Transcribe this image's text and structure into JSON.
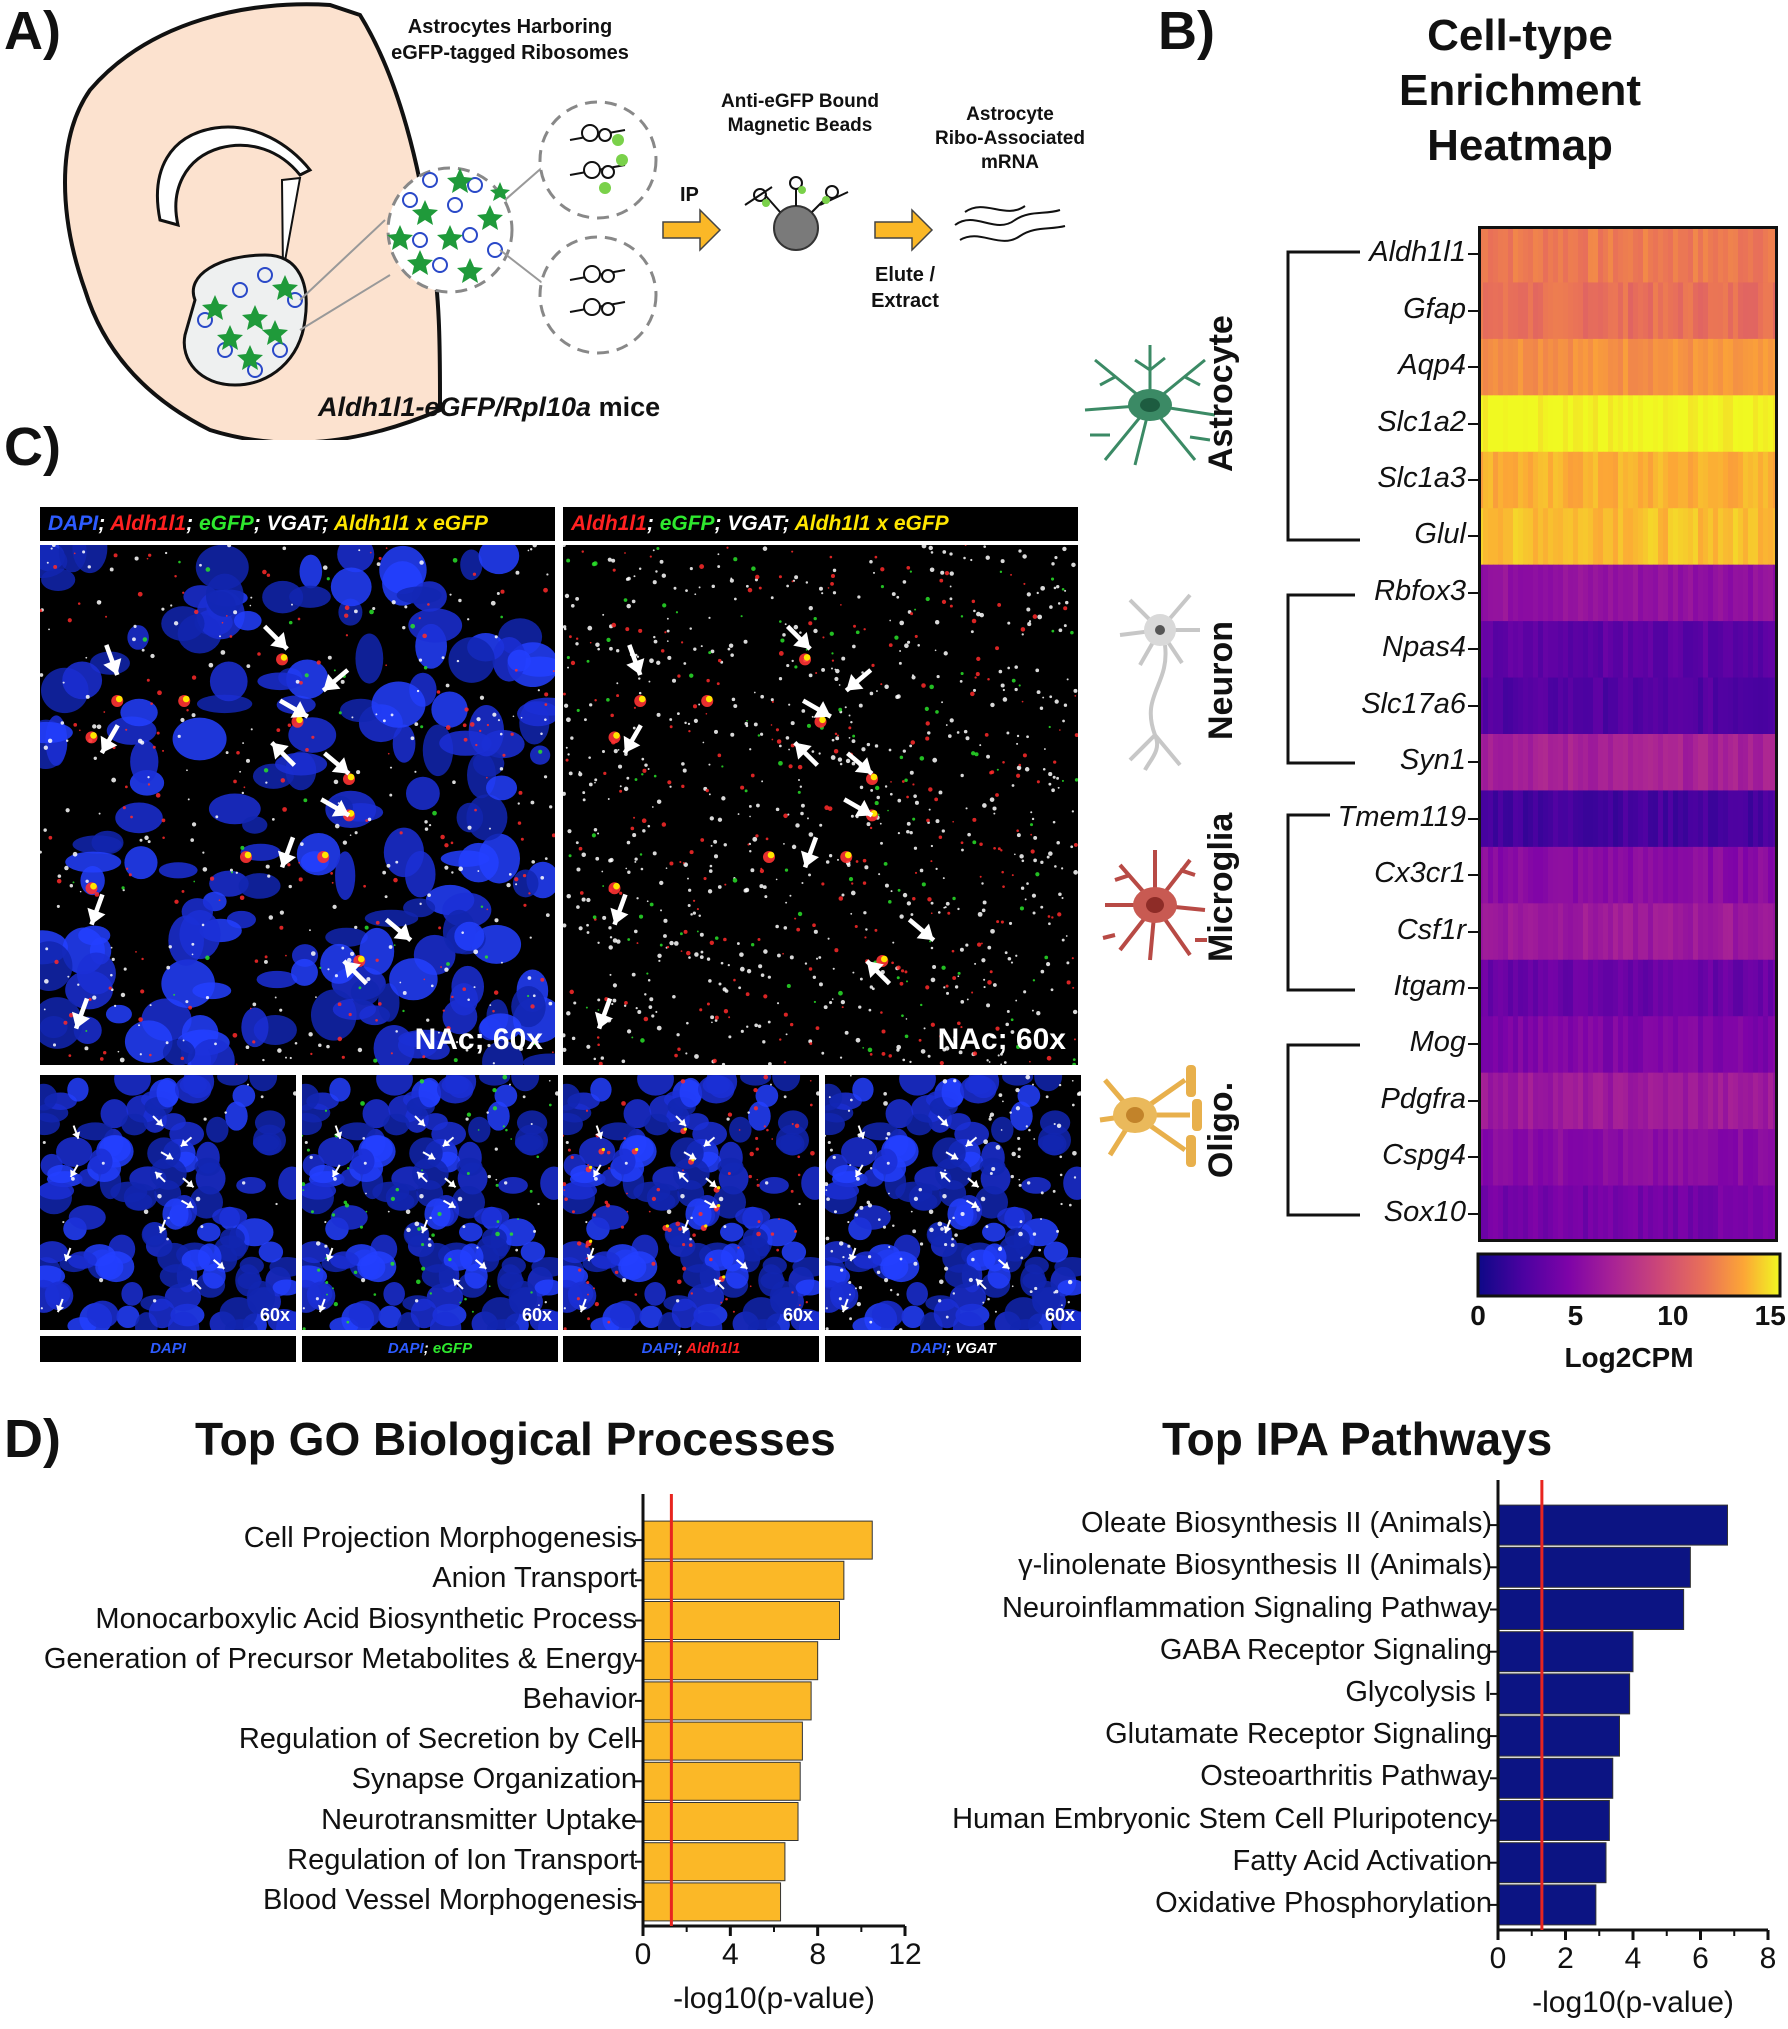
{
  "panels": {
    "a": "A)",
    "b": "B)",
    "c": "C)",
    "d": "D)"
  },
  "panel_a": {
    "cells_label": "Astrocytes Harboring\neGFP-tagged Ribosomes",
    "beads_label": "Anti-eGFP Bound\nMagnetic Beads",
    "mrna_label": "Astrocyte\nRibo-Associated\nmRNA",
    "ip_label": "IP",
    "elute_label": "Elute /\nExtract",
    "mice_gene": "Aldh1l1-eGFP/Rpl10a",
    "mice_suffix": " mice"
  },
  "panel_b": {
    "title": "Cell-type\nEnrichment\nHeatmap",
    "colorbar_label": "Log2CPM",
    "colorbar_ticks": [
      "0",
      "5",
      "10",
      "15"
    ],
    "groups": [
      {
        "name": "Astrocyte",
        "genes": [
          "Aldh1l1",
          "Gfap",
          "Aqp4",
          "Slc1a2",
          "Slc1a3",
          "Glul"
        ]
      },
      {
        "name": "Neuron",
        "genes": [
          "Rbfox3",
          "Npas4",
          "Slc17a6",
          "Syn1"
        ]
      },
      {
        "name": "Microglia",
        "genes": [
          "Tmem119",
          "Cx3cr1",
          "Csf1r",
          "Itgam"
        ]
      },
      {
        "name": "Oligo.",
        "genes": [
          "Mog",
          "Pdgfra",
          "Cspg4",
          "Sox10"
        ]
      }
    ],
    "row_values": [
      11.5,
      11.0,
      12.5,
      15.5,
      13.5,
      14.0,
      5.5,
      3.0,
      2.5,
      6.5,
      2.0,
      5.0,
      6.0,
      3.5,
      4.5,
      6.0,
      5.0,
      4.0
    ],
    "colors": {
      "low": "#0d0887",
      "high": "#f0f921"
    }
  },
  "panel_c": {
    "top_left_header": [
      {
        "text": "DAPI",
        "color": "blue"
      },
      {
        "text": "; ",
        "color": "white"
      },
      {
        "text": "Aldh1l1",
        "color": "red"
      },
      {
        "text": "; ",
        "color": "white"
      },
      {
        "text": "eGFP",
        "color": "green"
      },
      {
        "text": "; VGAT; ",
        "color": "white"
      },
      {
        "text": "Aldh1l1 x eGFP",
        "color": "yellow"
      }
    ],
    "top_right_header": [
      {
        "text": "Aldh1l1",
        "color": "red"
      },
      {
        "text": "; ",
        "color": "white"
      },
      {
        "text": "eGFP",
        "color": "green"
      },
      {
        "text": "; VGAT; ",
        "color": "white"
      },
      {
        "text": "Aldh1l1 x eGFP",
        "color": "yellow"
      }
    ],
    "top_tag": "NAc; 60x",
    "small_tag": "60x",
    "footers": [
      [
        {
          "text": "DAPI",
          "color": "blue"
        }
      ],
      [
        {
          "text": "DAPI",
          "color": "blue"
        },
        {
          "text": "; ",
          "color": "white"
        },
        {
          "text": "eGFP",
          "color": "green"
        }
      ],
      [
        {
          "text": "DAPI",
          "color": "blue"
        },
        {
          "text": "; ",
          "color": "white"
        },
        {
          "text": "Aldh1l1",
          "color": "red"
        }
      ],
      [
        {
          "text": "DAPI",
          "color": "blue"
        },
        {
          "text": "; VGAT",
          "color": "white"
        }
      ]
    ]
  },
  "chart_data": [
    {
      "type": "bar",
      "orientation": "horizontal",
      "title": "Top GO Biological Processes",
      "xlabel": "-log10(p-value)",
      "categories": [
        "Cell Projection Morphogenesis",
        "Anion Transport",
        "Monocarboxylic Acid Biosynthetic Process",
        "Generation of Precursor Metabolites & Energy",
        "Behavior",
        "Regulation of Secretion by Cell",
        "Synapse Organization",
        "Neurotransmitter Uptake",
        "Regulation of Ion Transport",
        "Blood Vessel Morphogenesis"
      ],
      "values": [
        10.5,
        9.2,
        9.0,
        8.0,
        7.7,
        7.3,
        7.2,
        7.1,
        6.5,
        6.3
      ],
      "xlim": [
        0,
        12
      ],
      "xticks": [
        "0",
        "4",
        "8",
        "12"
      ],
      "threshold": 1.3,
      "bar_color": "#fbb827",
      "threshold_color": "#e8251f"
    },
    {
      "type": "bar",
      "orientation": "horizontal",
      "title": "Top IPA Pathways",
      "xlabel": "-log10(p-value)",
      "categories": [
        "Oleate Biosynthesis II (Animals)",
        "γ-linolenate Biosynthesis II (Animals)",
        "Neuroinflammation Signaling Pathway",
        "GABA Receptor Signaling",
        "Glycolysis I",
        "Glutamate Receptor Signaling",
        "Osteoarthritis Pathway",
        "Human Embryonic Stem Cell Pluripotency",
        "Fatty Acid Activation",
        "Oxidative Phosphorylation"
      ],
      "values": [
        6.8,
        5.7,
        5.5,
        4.0,
        3.9,
        3.6,
        3.4,
        3.3,
        3.2,
        2.9
      ],
      "xlim": [
        0,
        8
      ],
      "xticks": [
        "0",
        "2",
        "4",
        "6",
        "8"
      ],
      "threshold": 1.3,
      "bar_color": "#0c1483",
      "threshold_color": "#e8251f"
    }
  ]
}
